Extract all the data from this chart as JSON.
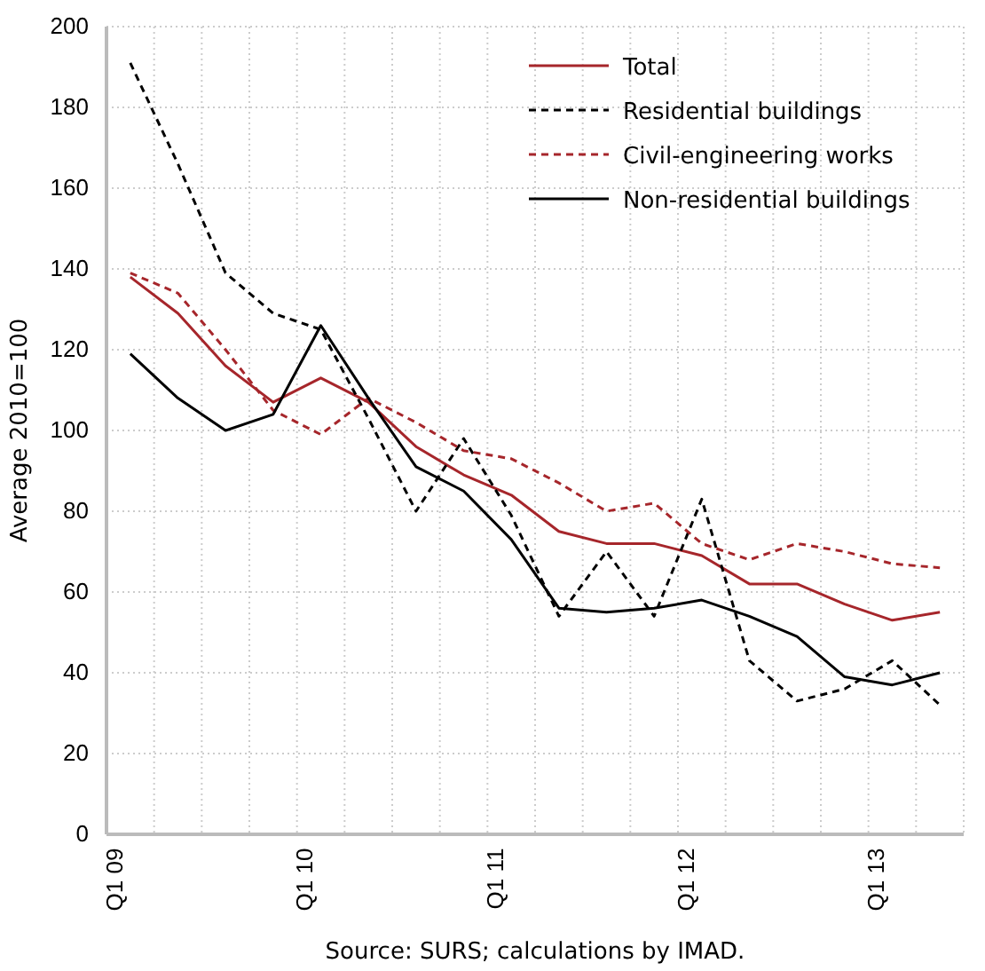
{
  "chart_data": {
    "type": "line",
    "ylabel": "Average 2010=100",
    "annotations": [
      "Source: SURS; calculations by IMAD."
    ],
    "categories": [
      "Q1 09",
      null,
      null,
      null,
      "Q1 10",
      null,
      null,
      null,
      "Q1 11",
      null,
      null,
      null,
      "Q1 12",
      null,
      null,
      null,
      "Q1 13",
      null
    ],
    "series": [
      {
        "name": "Total",
        "color": "#a6262b",
        "line_style": "solid",
        "values": [
          138,
          129,
          116,
          107,
          113,
          107,
          96,
          89,
          84,
          75,
          72,
          72,
          69,
          62,
          62,
          57,
          53,
          55
        ]
      },
      {
        "name": "Residential buildings",
        "color": "#000000",
        "line_style": "dashed",
        "values": [
          191,
          166,
          139,
          129,
          125,
          103,
          80,
          98,
          79,
          54,
          70,
          54,
          83,
          43,
          33,
          36,
          43,
          32
        ]
      },
      {
        "name": "Civil-engineering works",
        "color": "#a6262b",
        "line_style": "dashed",
        "values": [
          139,
          134,
          120,
          105,
          99,
          108,
          102,
          95,
          93,
          87,
          80,
          82,
          72,
          68,
          72,
          70,
          67,
          66
        ]
      },
      {
        "name": "Non-residential buildings",
        "color": "#000000",
        "line_style": "solid",
        "values": [
          119,
          108,
          100,
          104,
          126,
          108,
          91,
          85,
          73,
          56,
          55,
          56,
          58,
          54,
          49,
          39,
          37,
          40
        ]
      }
    ],
    "ylim": [
      0,
      200
    ],
    "yticks": [
      0,
      20,
      40,
      60,
      80,
      100,
      120,
      140,
      160,
      180,
      200
    ],
    "grid": true,
    "legend": "top right"
  }
}
